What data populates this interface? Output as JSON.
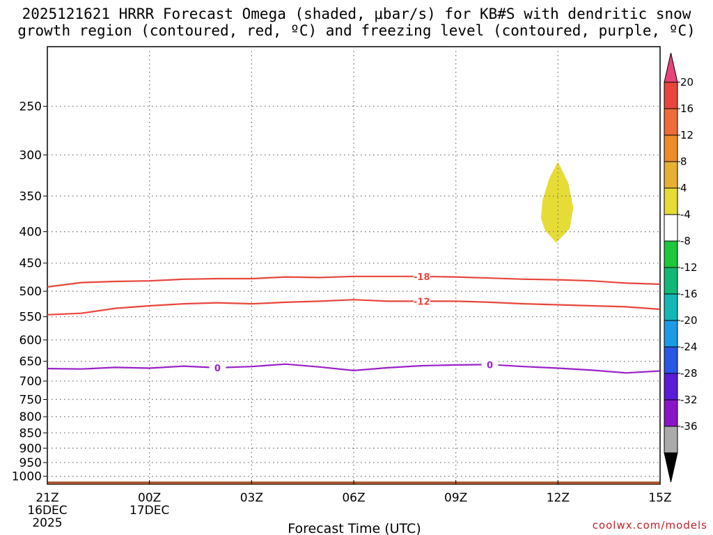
{
  "title_line1": "2025121621 HRRR Forecast Omega (shaded, μbar/s) for KB#S with dendritic snow",
  "title_line2": "growth region (contoured, red, ºC) and freezing level (contoured, purple, ºC)",
  "credit": "coolwx.com/models",
  "colors": {
    "dgz_contour": "#e8463c",
    "freezing_contour": "#9a20c8",
    "ground": "#a5522a",
    "omega_fill": "#e6dc36",
    "grid": "#777777"
  },
  "chart_data": {
    "type": "area",
    "xlabel": "Forecast Time (UTC)",
    "x_range_hours": [
      0,
      18
    ],
    "x_ticks": [
      {
        "hour": 0,
        "lines": [
          "21Z",
          "16DEC",
          "2025"
        ]
      },
      {
        "hour": 3,
        "lines": [
          "00Z",
          "17DEC"
        ]
      },
      {
        "hour": 6,
        "lines": [
          "03Z"
        ]
      },
      {
        "hour": 9,
        "lines": [
          "06Z"
        ]
      },
      {
        "hour": 12,
        "lines": [
          "09Z"
        ]
      },
      {
        "hour": 15,
        "lines": [
          "12Z"
        ]
      },
      {
        "hour": 18,
        "lines": [
          "15Z"
        ]
      }
    ],
    "y_axis": {
      "scale": "log",
      "inverted": true,
      "range_hpa": [
        200,
        1030
      ],
      "ticks": [
        250,
        300,
        350,
        400,
        450,
        500,
        550,
        600,
        650,
        700,
        750,
        800,
        850,
        900,
        950,
        1000
      ]
    },
    "series": [
      {
        "label": "-18",
        "color": "#e8463c",
        "label_at_hour": 11,
        "hours": [
          0,
          1,
          2,
          3,
          4,
          5,
          6,
          7,
          8,
          9,
          10,
          11,
          12,
          13,
          14,
          15,
          16,
          17,
          18
        ],
        "hpa": [
          492,
          484,
          482,
          481,
          478,
          477,
          477,
          474,
          475,
          473,
          473,
          473,
          474,
          476,
          478,
          479,
          481,
          485,
          487
        ]
      },
      {
        "label": "-12",
        "color": "#e8463c",
        "label_at_hour": 11,
        "hours": [
          0,
          1,
          2,
          3,
          4,
          5,
          6,
          7,
          8,
          9,
          10,
          11,
          12,
          13,
          14,
          15,
          16,
          17,
          18
        ],
        "hpa": [
          546,
          543,
          533,
          528,
          524,
          522,
          524,
          521,
          519,
          516,
          519,
          519,
          519,
          521,
          524,
          526,
          528,
          530,
          535
        ]
      },
      {
        "label": "0",
        "color": "#9a20c8",
        "label_at_hours": [
          5,
          13
        ],
        "hours": [
          0,
          1,
          2,
          3,
          4,
          5,
          6,
          7,
          8,
          9,
          10,
          11,
          12,
          13,
          14,
          15,
          16,
          17,
          18
        ],
        "hpa": [
          668,
          669,
          665,
          667,
          662,
          666,
          663,
          657,
          664,
          673,
          666,
          661,
          659,
          658,
          663,
          667,
          672,
          679,
          674
        ]
      }
    ],
    "omega_regions": [
      {
        "value_range": [
          4,
          8
        ],
        "color": "#e6dc36",
        "outline": [
          [
            15.0,
            308
          ],
          [
            14.75,
            327
          ],
          [
            14.55,
            355
          ],
          [
            14.5,
            380
          ],
          [
            14.62,
            398
          ],
          [
            14.95,
            417
          ],
          [
            15.35,
            395
          ],
          [
            15.45,
            365
          ],
          [
            15.3,
            333
          ]
        ]
      }
    ],
    "colorbar": {
      "label_values": [
        20,
        16,
        12,
        8,
        4,
        -4,
        -8,
        -12,
        -16,
        -20,
        -24,
        -28,
        -32,
        -36
      ],
      "colors": [
        "#e8437a",
        "#e8463c",
        "#ef6c3a",
        "#ee8c2a",
        "#e6b032",
        "#e6dc36",
        "#ffffff",
        "#1cc83c",
        "#12b878",
        "#12b8b4",
        "#1c9ae6",
        "#2858e6",
        "#5a1cd8",
        "#8a14c8",
        "#aaaaaa",
        "#000000"
      ]
    }
  }
}
